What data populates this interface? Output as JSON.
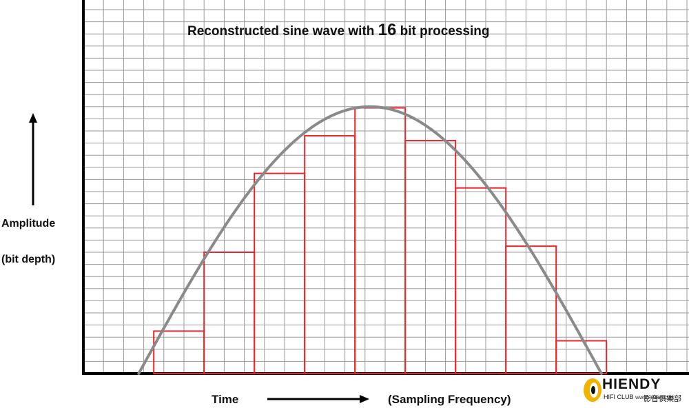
{
  "chart_data": {
    "type": "step-reconstruction",
    "title_prefix": "Reconstructed sine wave with",
    "title_bits": "16",
    "title_suffix": "bit processing",
    "ylabel_line1": "Amplitude",
    "ylabel_line2": "(bit depth)",
    "xlabel_left": "Time",
    "xlabel_right": "(Sampling Frequency)",
    "x_range": [
      0,
      24
    ],
    "y_range": [
      0,
      23
    ],
    "grid": true,
    "sine": {
      "name": "sine wave",
      "start_x": 2.75,
      "end_x": 25.75,
      "peak": 22.0,
      "color": "#8a8a8a"
    },
    "steps": {
      "name": "16-bit reconstruction",
      "color": "#e8262a",
      "edges": [
        3.5,
        6.0,
        8.5,
        11.0,
        13.5,
        16.0,
        18.5,
        21.0,
        23.5,
        26.0,
        28.5
      ],
      "values": [
        3.5,
        10.0,
        16.5,
        19.6,
        21.9,
        19.2,
        15.3,
        10.5,
        2.7,
        0
      ]
    }
  },
  "logo": {
    "name": "HIENDY",
    "sub": "HIFI CLUB",
    "site": "WWW.HIENDY.COM",
    "cn": "影音俱樂部",
    "color": "#f0b400"
  }
}
